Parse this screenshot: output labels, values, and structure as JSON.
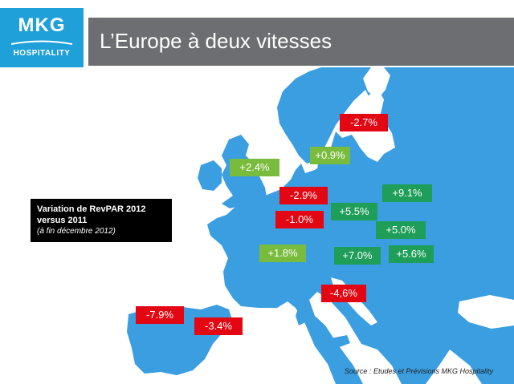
{
  "header": {
    "logo": {
      "brand": "MKG",
      "subtitle": "HOSPITALITY"
    },
    "title": "L’Europe à deux vitesses"
  },
  "legend": {
    "title_line1": "Variation de RevPAR 2012",
    "title_line2": "versus 2011",
    "subtitle": "(à fin décembre 2012)"
  },
  "colors": {
    "sea": "#ffffff",
    "land": "#3a9ee1",
    "negative": "#e30613",
    "positive_light": "#79bc3d",
    "positive": "#1e9e58"
  },
  "values": [
    {
      "value": "-2.7%",
      "tone": "negative"
    },
    {
      "value": "+0.9%",
      "tone": "positive_light"
    },
    {
      "value": "+2.4%",
      "tone": "positive_light"
    },
    {
      "value": "-2.9%",
      "tone": "negative"
    },
    {
      "value": "+9.1%",
      "tone": "positive"
    },
    {
      "value": "+5.5%",
      "tone": "positive"
    },
    {
      "value": "-1.0%",
      "tone": "negative"
    },
    {
      "value": "+5.0%",
      "tone": "positive"
    },
    {
      "value": "+1.8%",
      "tone": "positive_light"
    },
    {
      "value": "+7.0%",
      "tone": "positive"
    },
    {
      "value": "+5.6%",
      "tone": "positive"
    },
    {
      "value": "-4,6%",
      "tone": "negative"
    },
    {
      "value": "-7.9%",
      "tone": "negative"
    },
    {
      "value": "-3.4%",
      "tone": "negative"
    }
  ],
  "source": "Source : Etudes et Prévisions  MKG Hospitality"
}
